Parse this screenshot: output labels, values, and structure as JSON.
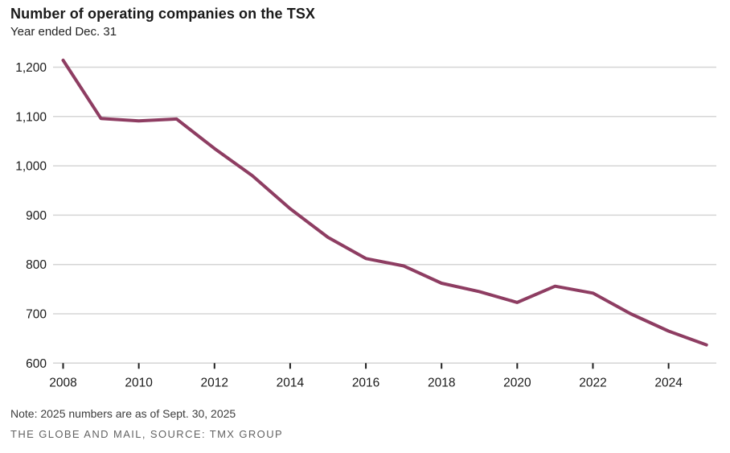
{
  "header": {
    "title": "Number of operating companies on the TSX",
    "subtitle": "Year ended Dec. 31"
  },
  "footer": {
    "note": "Note: 2025 numbers are as of Sept. 30, 2025",
    "source": "THE GLOBE AND MAIL, SOURCE: TMX GROUP"
  },
  "chart_data": {
    "type": "line",
    "title": "Number of operating companies on the TSX",
    "subtitle": "Year ended Dec. 31",
    "x": [
      2008,
      2009,
      2010,
      2011,
      2012,
      2013,
      2014,
      2015,
      2016,
      2017,
      2018,
      2019,
      2020,
      2021,
      2022,
      2023,
      2024,
      2025
    ],
    "values": [
      1214,
      1096,
      1091,
      1095,
      1035,
      980,
      913,
      855,
      812,
      797,
      762,
      745,
      723,
      756,
      742,
      700,
      665,
      637
    ],
    "xlabel": "",
    "ylabel": "",
    "ylim": [
      600,
      1250
    ],
    "xlim": [
      2008,
      2025
    ],
    "yticks": [
      600,
      700,
      800,
      900,
      1000,
      1100,
      1200
    ],
    "ytick_labels": [
      "600",
      "700",
      "800",
      "900",
      "1,000",
      "1,100",
      "1,200"
    ],
    "xticks": [
      2008,
      2010,
      2012,
      2014,
      2016,
      2018,
      2020,
      2022,
      2024
    ],
    "xtick_labels": [
      "2008",
      "2010",
      "2012",
      "2014",
      "2016",
      "2018",
      "2020",
      "2022",
      "2024"
    ],
    "grid": "horizontal",
    "legend": "none",
    "colors": {
      "line": "#8E3D62",
      "gridline": "#D5D5D5",
      "tick": "#1f1f1f",
      "axis_label": "#1a1a1a"
    }
  }
}
